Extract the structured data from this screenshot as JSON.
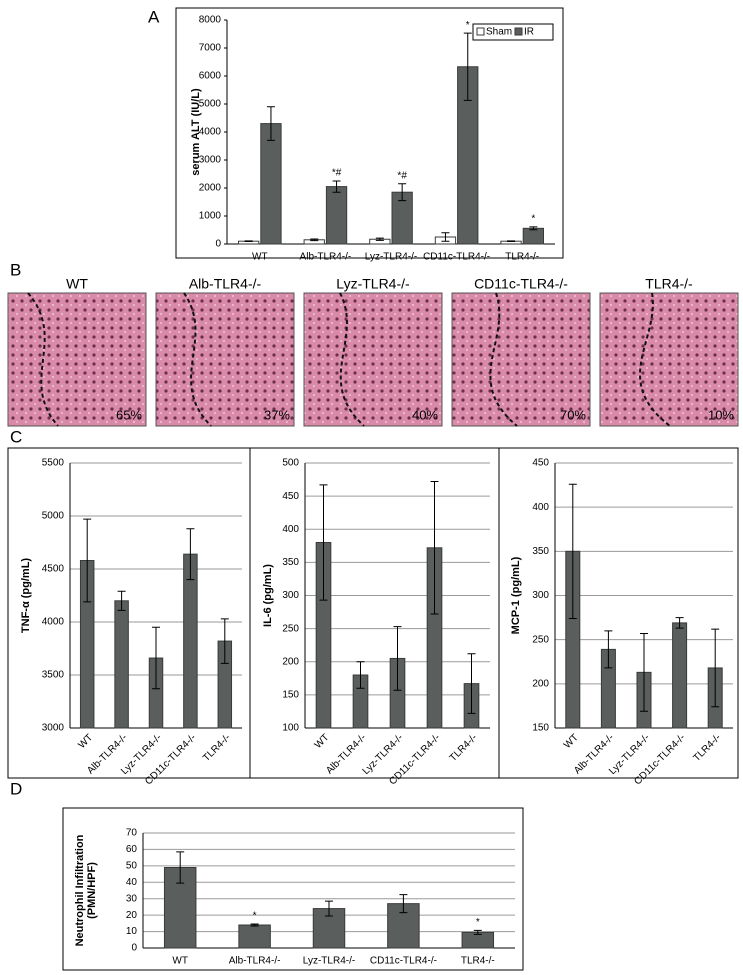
{
  "chart_data": [
    {
      "type": "bar",
      "panel": "A",
      "ylabel": "serum ALT (IU/L)",
      "categories": [
        "WT",
        "Alb-TLR4-/-",
        "Lyz-TLR4-/-",
        "CD11c-TLR4-/-",
        "TLR4-/-"
      ],
      "series": [
        {
          "name": "Sham",
          "color": "#ffffff",
          "values": [
            100,
            150,
            170,
            250,
            100
          ],
          "errors": [
            10,
            30,
            40,
            150,
            10
          ]
        },
        {
          "name": "IR",
          "color": "#5a5f5e",
          "values": [
            4300,
            2050,
            1850,
            6330,
            560
          ],
          "errors": [
            600,
            200,
            300,
            1200,
            50
          ]
        }
      ],
      "annotations": [
        null,
        "*#",
        "*#",
        "*",
        "*"
      ],
      "ylim": [
        0,
        8000
      ],
      "yticks": [
        0,
        1000,
        2000,
        3000,
        4000,
        5000,
        6000,
        7000,
        8000
      ],
      "grid": false,
      "legend": "upper right"
    },
    {
      "type": "bar",
      "panel": "C",
      "ylabel": "TNF-α (pg/mL)",
      "categories": [
        "WT",
        "Alb-TLR4-/-",
        "Lyz-TLR4-/-",
        "CD11c-TLR4-/-",
        "TLR4-/-"
      ],
      "values": [
        4580,
        4200,
        3660,
        4640,
        3820
      ],
      "errors": [
        390,
        90,
        290,
        240,
        210
      ],
      "color": "#5a5f5e",
      "ylim": [
        3000,
        5500
      ],
      "yticks": [
        3000,
        3500,
        4000,
        4500,
        5000,
        5500
      ],
      "grid": true
    },
    {
      "type": "bar",
      "ylabel": "IL-6 (pg/mL)",
      "categories": [
        "WT",
        "Alb-TLR4-/-",
        "Lyz-TLR4-/-",
        "CD11c-TLR4-/-",
        "TLR4-/-"
      ],
      "values": [
        380,
        180,
        205,
        372,
        167
      ],
      "errors": [
        87,
        20,
        48,
        100,
        45
      ],
      "color": "#5a5f5e",
      "ylim": [
        100,
        500
      ],
      "yticks": [
        100,
        150,
        200,
        250,
        300,
        350,
        400,
        450,
        500
      ],
      "grid": true
    },
    {
      "type": "bar",
      "ylabel": "MCP-1 (pg/mL)",
      "categories": [
        "WT",
        "Alb-TLR4-/-",
        "Lyz-TLR4-/-",
        "CD11c-TLR4-/-",
        "TLR4-/-"
      ],
      "values": [
        350,
        239,
        213,
        269,
        218
      ],
      "errors": [
        76,
        21,
        44,
        6,
        44
      ],
      "color": "#5a5f5e",
      "ylim": [
        150,
        450
      ],
      "yticks": [
        150,
        200,
        250,
        300,
        350,
        400,
        450
      ],
      "grid": true
    },
    {
      "type": "bar",
      "panel": "D",
      "ylabel": [
        "Neutrophil Infiltration",
        "(PMN/HPF)"
      ],
      "categories": [
        "WT",
        "Alb-TLR4-/-",
        "Lyz-TLR4-/-",
        "CD11c-TLR4-/-",
        "TLR4-/-"
      ],
      "values": [
        49,
        14,
        24,
        27,
        9.5
      ],
      "errors": [
        9.5,
        0.6,
        4.5,
        5.5,
        1.2
      ],
      "color": "#5a5f5e",
      "annotations": [
        null,
        "*",
        null,
        null,
        "*"
      ],
      "ylim": [
        0,
        70
      ],
      "yticks": [
        0,
        10,
        20,
        30,
        40,
        50,
        60,
        70
      ],
      "grid": true
    }
  ],
  "histology": {
    "panel": "B",
    "images": [
      {
        "label": "WT",
        "percent": "65%"
      },
      {
        "label": "Alb-TLR4-/-",
        "percent": "37%"
      },
      {
        "label": "Lyz-TLR4-/-",
        "percent": "40%"
      },
      {
        "label": "CD11c-TLR4-/-",
        "percent": "70%"
      },
      {
        "label": "TLR4-/-",
        "percent": "10%"
      }
    ]
  }
}
